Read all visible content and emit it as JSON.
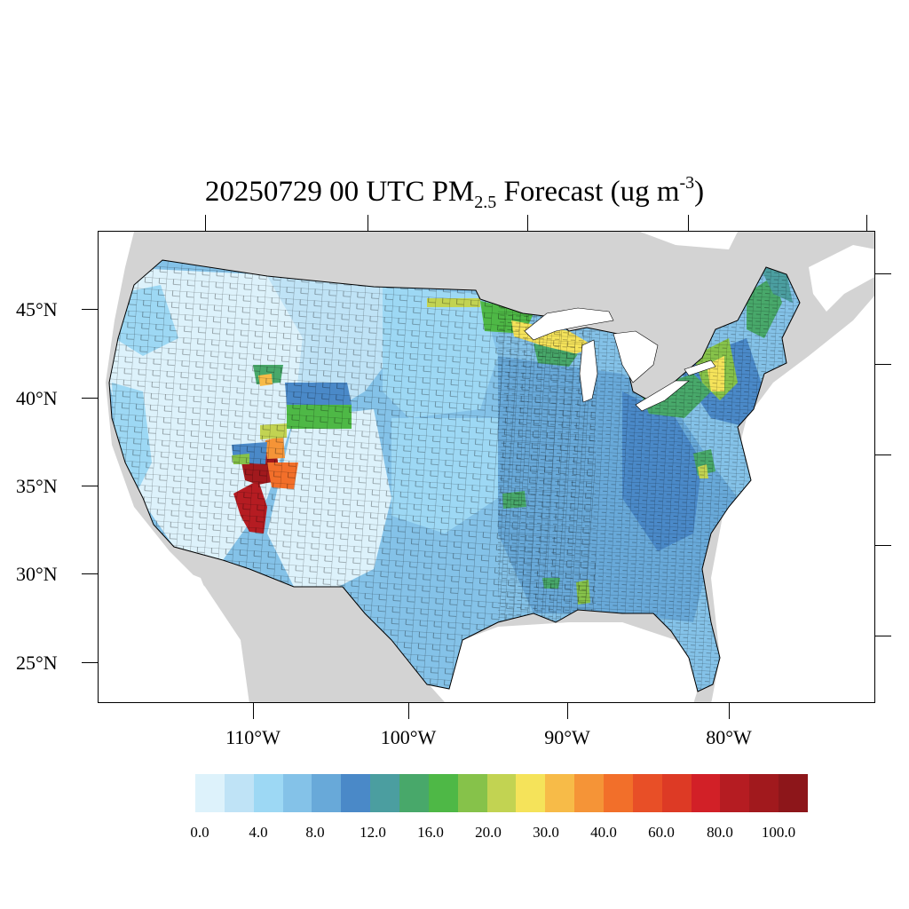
{
  "title": {
    "prefix": "20250729 00 UTC PM",
    "subscript": "2.5",
    "middle": " Forecast (ug m",
    "superscript": "-3",
    "suffix": ")"
  },
  "map": {
    "projection": "Lambert conformal (CONUS)",
    "land_outside_color": "#d3d3d3",
    "water_color": "#ffffff",
    "county_line_color": "#000000",
    "lat_labels": [
      "45°N",
      "40°N",
      "35°N",
      "30°N",
      "25°N"
    ],
    "lon_labels": [
      "110°W",
      "100°W",
      "90°W",
      "80°W"
    ],
    "hotspots": [
      {
        "region": "Central Arizona",
        "level": "80-100+"
      },
      {
        "region": "Southern Utah / Four Corners",
        "level": "40-60"
      },
      {
        "region": "Upper Michigan / Wisconsin border",
        "level": "20-30"
      },
      {
        "region": "Northern Minnesota",
        "level": "16-20"
      },
      {
        "region": "Wyoming / Colorado",
        "level": "16-20"
      },
      {
        "region": "New York / Pennsylvania",
        "level": "20-30"
      },
      {
        "region": "Northern Maine",
        "level": "12-20"
      }
    ]
  },
  "colorbar": {
    "labels": [
      "0.0",
      "4.0",
      "8.0",
      "12.0",
      "16.0",
      "20.0",
      "30.0",
      "40.0",
      "60.0",
      "80.0",
      "100.0"
    ],
    "colors": [
      "#ddf2fb",
      "#bfe3f6",
      "#9dd8f4",
      "#84c2e8",
      "#68a9d9",
      "#4a89c8",
      "#4b9ea0",
      "#48a86a",
      "#4eb846",
      "#86c24a",
      "#c2d352",
      "#f5e35a",
      "#f7bb48",
      "#f59437",
      "#f26f2a",
      "#e84f27",
      "#dd3a25",
      "#d22027",
      "#b51c22",
      "#a1191d",
      "#8d161a"
    ]
  }
}
